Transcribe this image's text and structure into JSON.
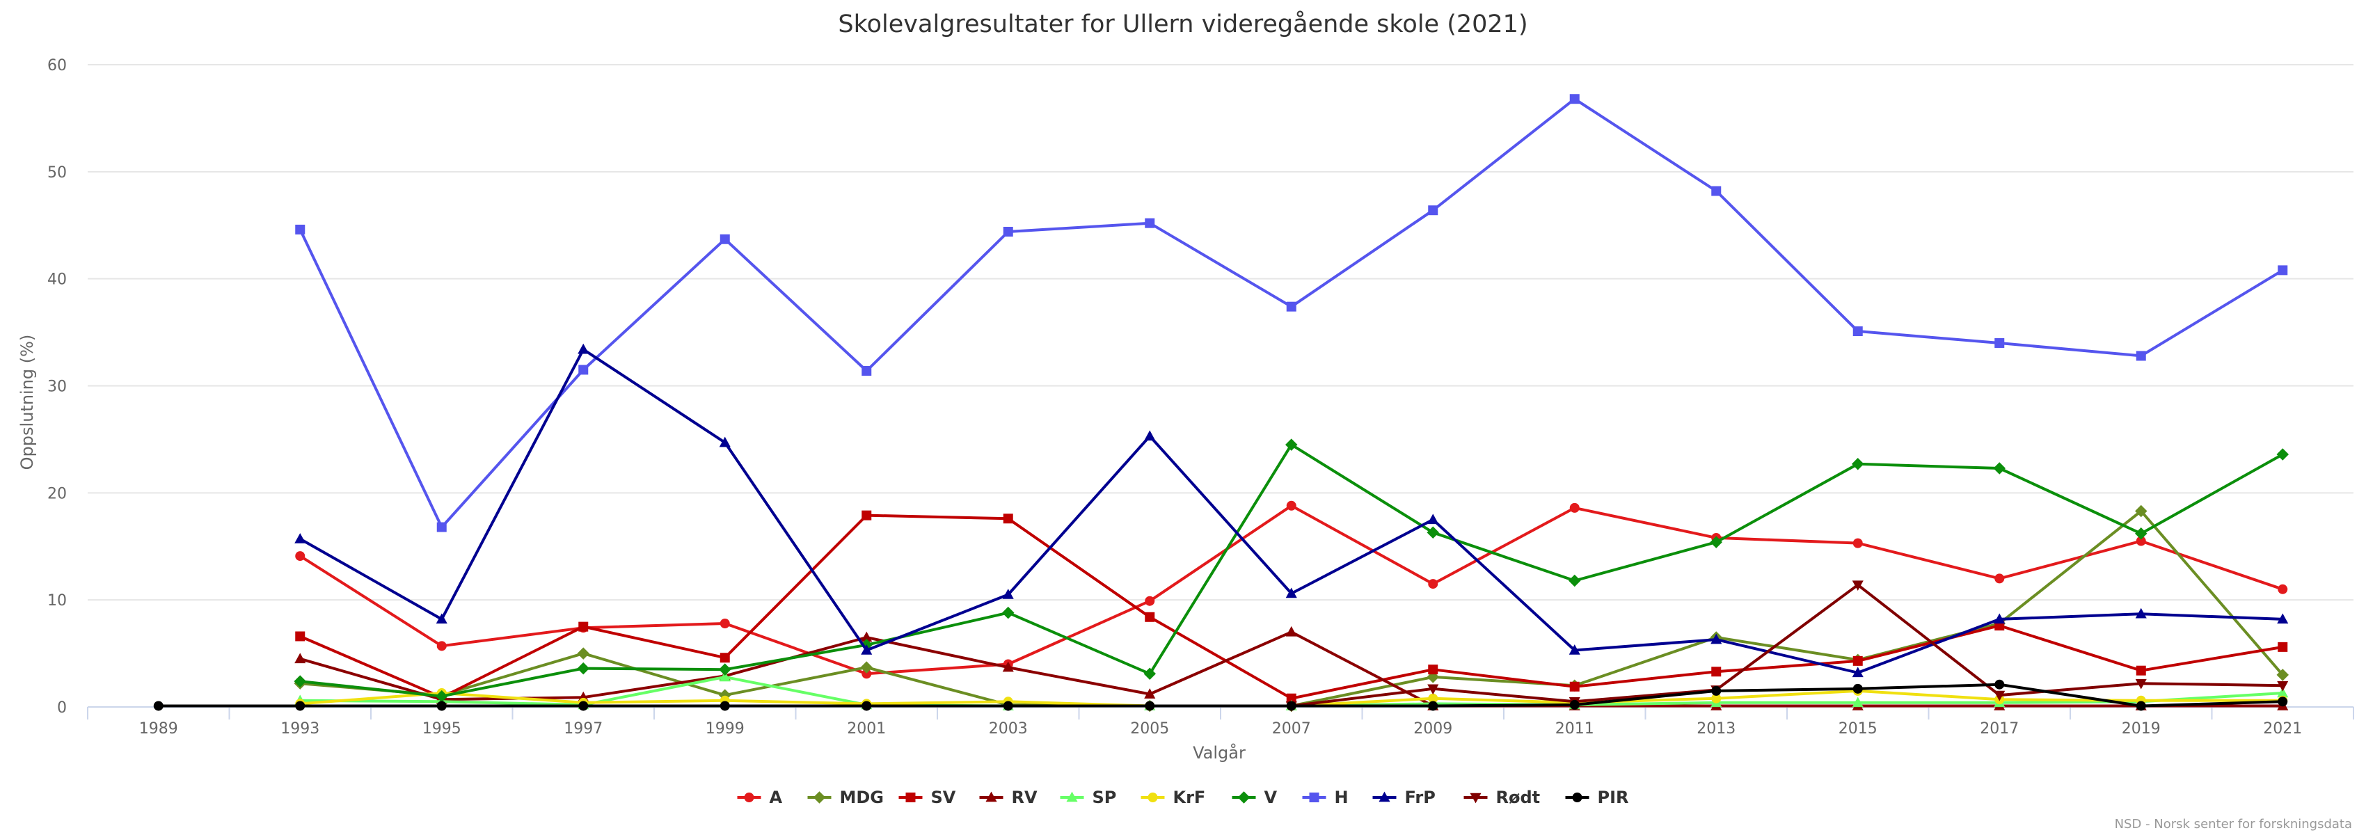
{
  "chart_data": {
    "type": "line",
    "title": "Skolevalgresultater for Ullern videregående skole (2021)",
    "xlabel": "Valgår",
    "ylabel": "Oppslutning (%)",
    "ylim": [
      0,
      60
    ],
    "yticks": [
      "0",
      "10",
      "20",
      "30",
      "40",
      "50",
      "60"
    ],
    "categories": [
      "1989",
      "1993",
      "1995",
      "1997",
      "1999",
      "2001",
      "2003",
      "2005",
      "2007",
      "2009",
      "2011",
      "2013",
      "2015",
      "2017",
      "2019",
      "2021"
    ],
    "grid": true,
    "legend_position": "bottom",
    "series": [
      {
        "name": "A",
        "color": "#e31a1c",
        "marker": "circle",
        "values": [
          null,
          14.1,
          5.7,
          7.4,
          7.8,
          3.1,
          4.0,
          9.9,
          18.8,
          11.5,
          18.6,
          15.8,
          15.3,
          12.0,
          15.5,
          11.0
        ]
      },
      {
        "name": "MDG",
        "color": "#6b8e23",
        "marker": "diamond",
        "values": [
          null,
          2.2,
          1.1,
          5.0,
          1.1,
          3.7,
          0.2,
          0.1,
          0.1,
          2.8,
          2.0,
          6.5,
          4.4,
          7.8,
          18.3,
          3.0
        ]
      },
      {
        "name": "SV",
        "color": "#c00000",
        "marker": "square",
        "values": [
          null,
          6.6,
          0.9,
          7.5,
          4.6,
          17.9,
          17.6,
          8.4,
          0.8,
          3.5,
          1.9,
          3.3,
          4.3,
          7.6,
          3.4,
          5.6
        ]
      },
      {
        "name": "RV",
        "color": "#8b0000",
        "marker": "triangle",
        "values": [
          null,
          4.5,
          0.7,
          0.9,
          2.9,
          6.5,
          3.7,
          1.2,
          7.0,
          0.1,
          0.1,
          0.1,
          0.1,
          0.1,
          0.1,
          0.1
        ]
      },
      {
        "name": "SP",
        "color": "#66ff66",
        "marker": "triangle",
        "values": [
          null,
          0.6,
          0.5,
          0.2,
          2.8,
          0.2,
          0.1,
          0.1,
          0.1,
          0.3,
          0.2,
          0.4,
          0.4,
          0.4,
          0.5,
          1.3
        ]
      },
      {
        "name": "KrF",
        "color": "#f0e010",
        "marker": "circle",
        "values": [
          null,
          0.3,
          1.3,
          0.4,
          0.6,
          0.3,
          0.5,
          0.1,
          0.1,
          0.8,
          0.4,
          0.8,
          1.5,
          0.7,
          0.6,
          0.6
        ]
      },
      {
        "name": "V",
        "color": "#0b8f0b",
        "marker": "diamond",
        "values": [
          null,
          2.4,
          1.0,
          3.6,
          3.5,
          5.8,
          8.8,
          3.1,
          24.5,
          16.3,
          11.8,
          15.4,
          22.7,
          22.3,
          16.2,
          23.6
        ]
      },
      {
        "name": "H",
        "color": "#5555ee",
        "marker": "square",
        "values": [
          null,
          44.6,
          16.8,
          31.5,
          43.7,
          31.4,
          44.4,
          45.2,
          37.4,
          46.4,
          56.8,
          48.2,
          35.1,
          34.0,
          32.8,
          40.8
        ]
      },
      {
        "name": "FrP",
        "color": "#000090",
        "marker": "triangle",
        "values": [
          null,
          15.7,
          8.2,
          33.4,
          24.7,
          5.3,
          10.5,
          25.3,
          10.6,
          17.5,
          5.3,
          6.3,
          3.2,
          8.2,
          8.7,
          8.2
        ]
      },
      {
        "name": "Rødt",
        "color": "#800000",
        "marker": "triangle-down",
        "values": [
          null,
          null,
          null,
          null,
          null,
          null,
          null,
          null,
          0.1,
          1.7,
          0.5,
          1.6,
          11.4,
          1.1,
          2.2,
          2.0
        ]
      },
      {
        "name": "PIR",
        "color": "#000000",
        "marker": "circle",
        "values": [
          0.1,
          0.1,
          0.1,
          0.1,
          0.1,
          0.1,
          0.1,
          0.1,
          0.1,
          0.1,
          0.2,
          1.5,
          1.7,
          2.1,
          0.1,
          0.5
        ]
      }
    ],
    "credit": "NSD - Norsk senter for forskningsdata"
  }
}
